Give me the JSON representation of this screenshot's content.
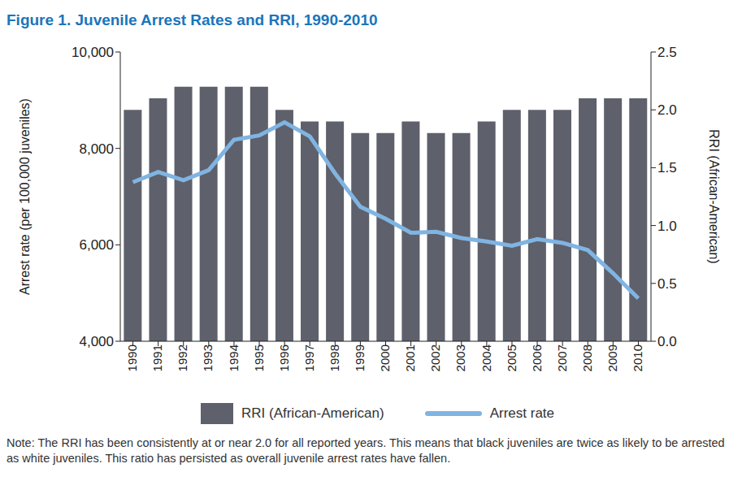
{
  "chart_data": {
    "type": "bar",
    "title": "Figure 1. Juvenile Arrest Rates and RRI, 1990-2010",
    "categories": [
      "1990",
      "1991",
      "1992",
      "1993",
      "1994",
      "1995",
      "1996",
      "1997",
      "1998",
      "1999",
      "2000",
      "2001",
      "2002",
      "2003",
      "2004",
      "2005",
      "2006",
      "2007",
      "2008",
      "2009",
      "2010"
    ],
    "series": [
      {
        "name": "RRI (African-American)",
        "type": "bar",
        "axis": "y2",
        "color": "#5e606b",
        "values": [
          2.0,
          2.1,
          2.2,
          2.2,
          2.2,
          2.2,
          2.0,
          1.9,
          1.9,
          1.8,
          1.8,
          1.9,
          1.8,
          1.8,
          1.9,
          2.0,
          2.0,
          2.0,
          2.1,
          2.1,
          2.1
        ]
      },
      {
        "name": "Arrest rate",
        "type": "line",
        "color": "#80b4e2",
        "values": [
          7300,
          7510,
          7340,
          7550,
          8180,
          8270,
          8540,
          8250,
          7480,
          6790,
          6540,
          6250,
          6270,
          6140,
          6070,
          5980,
          6120,
          6040,
          5890,
          5410,
          4890
        ]
      }
    ],
    "ylabel": "Arrest rate (per 100,000 juveniles)",
    "y2label": "RRI (African-American)",
    "ylim": [
      4000,
      10000
    ],
    "yticks": [
      {
        "value": 4000,
        "label": "4,000"
      },
      {
        "value": 6000,
        "label": "6,000"
      },
      {
        "value": 8000,
        "label": "8,000"
      },
      {
        "value": 10000,
        "label": "10,000"
      }
    ],
    "y2lim": [
      0,
      2.5
    ],
    "y2ticks": [
      {
        "value": 0,
        "label": "0.0"
      },
      0.5,
      {
        "value": 1,
        "label": "1.0"
      },
      1.5,
      {
        "value": 2,
        "label": "2.0"
      },
      2.5
    ],
    "grid": false,
    "legend": "bottom",
    "note": "Note: The RRI has been consistently at or near 2.0 for all reported years. This means that black juveniles are twice as likely to be arrested as white juveniles. This ratio has persisted as overall juvenile arrest rates have fallen."
  }
}
